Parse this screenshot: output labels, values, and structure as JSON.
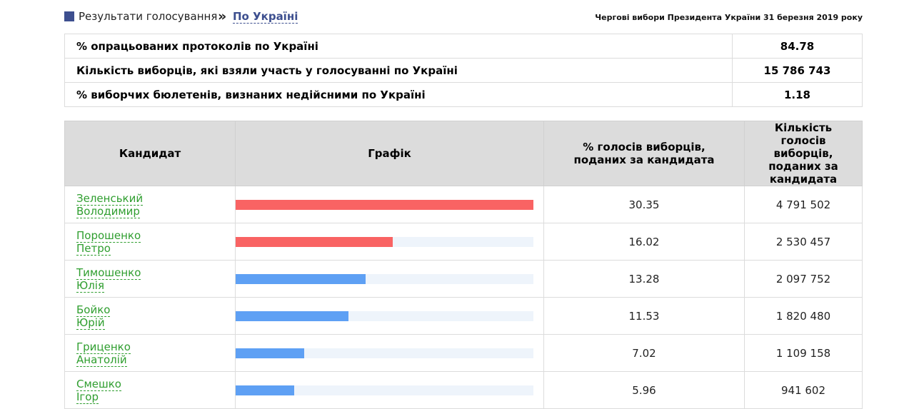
{
  "header": {
    "breadcrumb_root": "Результати голосування",
    "separator": "»",
    "breadcrumb_current": "По Україні",
    "election_title": "Чергові вибори Президента України 31 березня 2019 року"
  },
  "summary": [
    {
      "label": "% опрацьованих протоколів по Україні",
      "value": "84.78"
    },
    {
      "label": "Кількість виборців, які взяли участь у голосуванні по Україні",
      "value": "15 786 743"
    },
    {
      "label": "% виборчих бюлетенів, визнаних недійсними по Україні",
      "value": "1.18"
    }
  ],
  "results": {
    "columns": {
      "candidate": "Кандидат",
      "graph": "Графік",
      "percent": "% голосів виборців, поданих за кандидата",
      "votes": "Кількість голосів виборців, поданих за кандидата"
    },
    "colors": {
      "leader": "#f96363",
      "other": "#5ea0f4",
      "track": "#eef4fb"
    },
    "rows": [
      {
        "surname": "Зеленський",
        "name": "Володимир",
        "percent": "30.35",
        "votes": "4 791 502",
        "bar_color": "leader"
      },
      {
        "surname": "Порошенко",
        "name": "Петро",
        "percent": "16.02",
        "votes": "2 530 457",
        "bar_color": "leader"
      },
      {
        "surname": "Тимошенко",
        "name": "Юлія",
        "percent": "13.28",
        "votes": "2 097 752",
        "bar_color": "other"
      },
      {
        "surname": "Бойко",
        "name": "Юрій",
        "percent": "11.53",
        "votes": "1 820 480",
        "bar_color": "other"
      },
      {
        "surname": "Гриценко",
        "name": "Анатолій",
        "percent": "7.02",
        "votes": "1 109 158",
        "bar_color": "other"
      },
      {
        "surname": "Смешко",
        "name": "Ігор",
        "percent": "5.96",
        "votes": "941 602",
        "bar_color": "other"
      }
    ]
  }
}
